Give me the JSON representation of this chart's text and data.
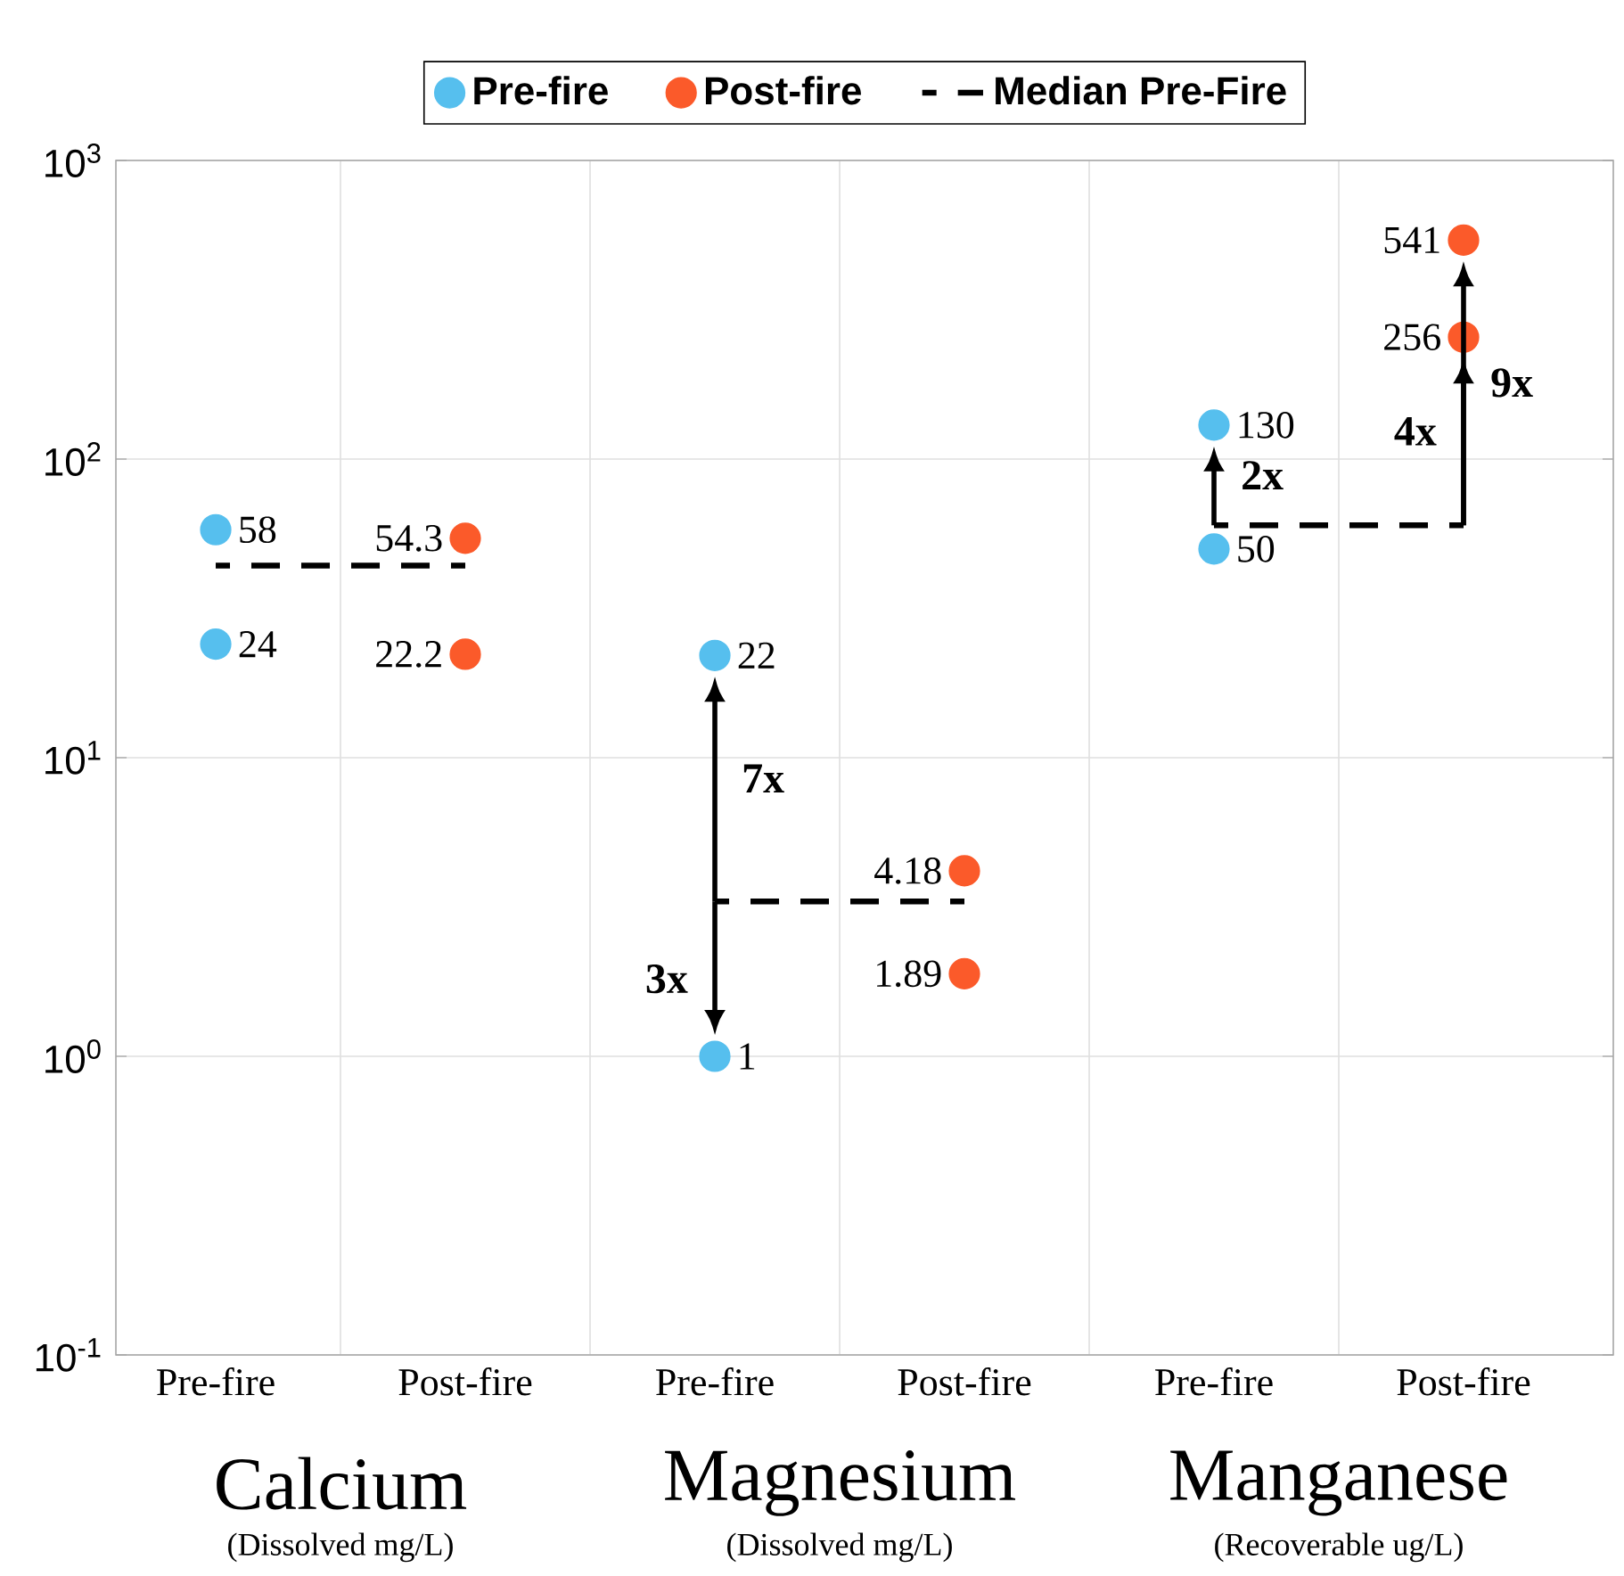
{
  "chart_data": {
    "type": "scatter",
    "categories": [
      "Pre-fire",
      "Post-fire",
      "Pre-fire",
      "Post-fire",
      "Pre-fire",
      "Post-fire"
    ],
    "series": [
      {
        "name": "Pre-fire",
        "color": "#56bfee",
        "marker": "circle",
        "values": [
          58,
          null,
          22,
          null,
          130,
          null
        ],
        "value_labels": [
          "58",
          null,
          "22",
          null,
          "130",
          null
        ]
      },
      {
        "color": "#56bfee",
        "marker": "circle",
        "values": [
          24,
          null,
          1,
          null,
          50,
          null
        ],
        "value_labels": [
          "24",
          null,
          "1",
          null,
          "50",
          null
        ]
      },
      {
        "name": "Post-fire",
        "color": "#fb5a2a",
        "marker": "circle",
        "values": [
          null,
          54.3,
          null,
          4.18,
          null,
          541
        ],
        "value_labels": [
          null,
          "54.3",
          null,
          "4.18",
          null,
          "541"
        ]
      },
      {
        "color": "#fb5a2a",
        "marker": "circle",
        "values": [
          null,
          22.2,
          null,
          1.89,
          null,
          256
        ],
        "value_labels": [
          null,
          "22.2",
          null,
          "1.89",
          null,
          "256"
        ]
      },
      {
        "name": "Median Pre-Fire",
        "type": "line",
        "color": "#000000",
        "line_style": "dashed",
        "marker": "none",
        "values": [
          44,
          44,
          null,
          null,
          null,
          null
        ]
      },
      {
        "type": "line",
        "color": "#000000",
        "line_style": "dashed",
        "marker": "none",
        "values": [
          null,
          null,
          3.3,
          3.3,
          null,
          null
        ]
      },
      {
        "type": "line",
        "color": "#000000",
        "line_style": "dashed",
        "marker": "none",
        "values": [
          null,
          null,
          null,
          null,
          60,
          60
        ]
      }
    ],
    "log": "y",
    "ylim": [
      0.1,
      1000
    ],
    "yticks": [
      {
        "value": 0.1,
        "label": "10$^{-1}$"
      },
      {
        "value": 1,
        "label": "10$^{0}$"
      },
      {
        "value": 10,
        "label": "10$^{1}$"
      },
      {
        "value": 100,
        "label": "10$^{2}$"
      },
      {
        "value": 1000,
        "label": "10$^{3}$"
      }
    ],
    "grid": true,
    "legend": "top",
    "annotations": [
      "Calcium",
      "(Dissolved mg/L)",
      "Magnesium",
      "(Dissolved mg/L)",
      "Manganese",
      "(Recoverable ug/L)",
      "7x",
      "3x",
      "2x",
      "4x",
      "9x"
    ]
  }
}
